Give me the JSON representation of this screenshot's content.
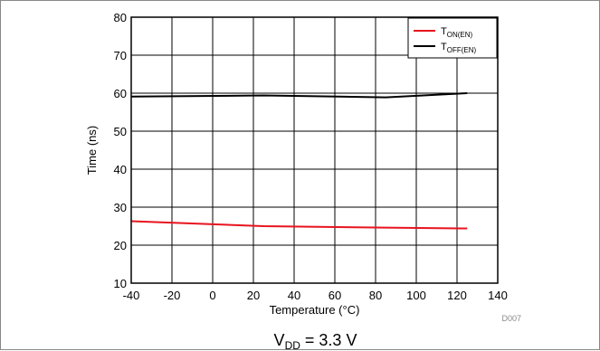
{
  "chart_data": {
    "type": "line",
    "xlabel": "Temperature (°C)",
    "ylabel": "Time (ns)",
    "xlim": [
      -40,
      140
    ],
    "ylim": [
      10,
      80
    ],
    "xticks": [
      -40,
      -20,
      0,
      20,
      40,
      60,
      80,
      100,
      120,
      140
    ],
    "yticks": [
      10,
      20,
      30,
      40,
      50,
      60,
      70,
      80
    ],
    "grid": true,
    "legend_position": "top-right",
    "series": [
      {
        "name_main": "T",
        "name_sub": "ON(EN)",
        "color": "#e8141e",
        "x": [
          -40,
          25,
          85,
          125
        ],
        "y": [
          26.3,
          25.0,
          24.6,
          24.4
        ]
      },
      {
        "name_main": "T",
        "name_sub": "OFF(EN)",
        "color": "#000000",
        "x": [
          -40,
          25,
          85,
          125
        ],
        "y": [
          59.1,
          59.4,
          58.9,
          60.0
        ]
      }
    ],
    "code_label": "D007",
    "caption_main": "V",
    "caption_sub": "DD",
    "caption_rest": " = 3.3 V"
  }
}
